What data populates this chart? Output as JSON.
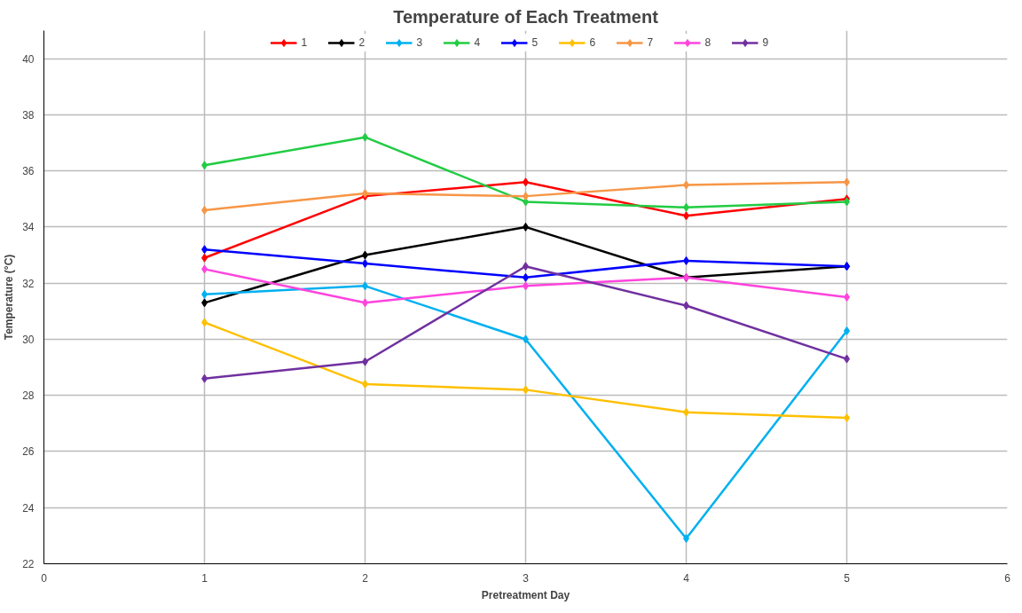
{
  "chart_data": {
    "type": "line",
    "title": "Temperature of Each Treatment",
    "xlabel": "Pretreatment Day",
    "ylabel": "Temperature (°C)",
    "x": [
      1,
      2,
      3,
      4,
      5
    ],
    "xlim": [
      0,
      6
    ],
    "xticks": [
      0,
      1,
      2,
      3,
      4,
      5,
      6
    ],
    "ylim": [
      22,
      41
    ],
    "yticks": [
      22,
      24,
      26,
      28,
      30,
      32,
      34,
      36,
      38,
      40
    ],
    "grid": true,
    "legend": "top",
    "marker": "diamond",
    "line_style": "solid",
    "series": [
      {
        "name": "1",
        "color": "#ff0000",
        "values": [
          32.9,
          35.1,
          35.6,
          34.4,
          35.0
        ]
      },
      {
        "name": "2",
        "color": "#000000",
        "values": [
          31.3,
          33.0,
          34.0,
          32.2,
          32.6
        ]
      },
      {
        "name": "3",
        "color": "#00b0f0",
        "values": [
          31.6,
          31.9,
          30.0,
          22.9,
          30.3
        ]
      },
      {
        "name": "4",
        "color": "#22cc44",
        "values": [
          36.2,
          37.2,
          34.9,
          34.7,
          34.9
        ]
      },
      {
        "name": "5",
        "color": "#0000ff",
        "values": [
          33.2,
          32.7,
          32.2,
          32.8,
          32.6
        ]
      },
      {
        "name": "6",
        "color": "#ffc000",
        "values": [
          30.6,
          28.4,
          28.2,
          27.4,
          27.2
        ]
      },
      {
        "name": "7",
        "color": "#f79646",
        "values": [
          34.6,
          35.2,
          35.1,
          35.5,
          35.6
        ]
      },
      {
        "name": "8",
        "color": "#ff44dd",
        "values": [
          32.5,
          31.3,
          31.9,
          32.2,
          31.5
        ]
      },
      {
        "name": "9",
        "color": "#7030a0",
        "values": [
          28.6,
          29.2,
          32.6,
          31.2,
          29.3
        ]
      }
    ]
  }
}
